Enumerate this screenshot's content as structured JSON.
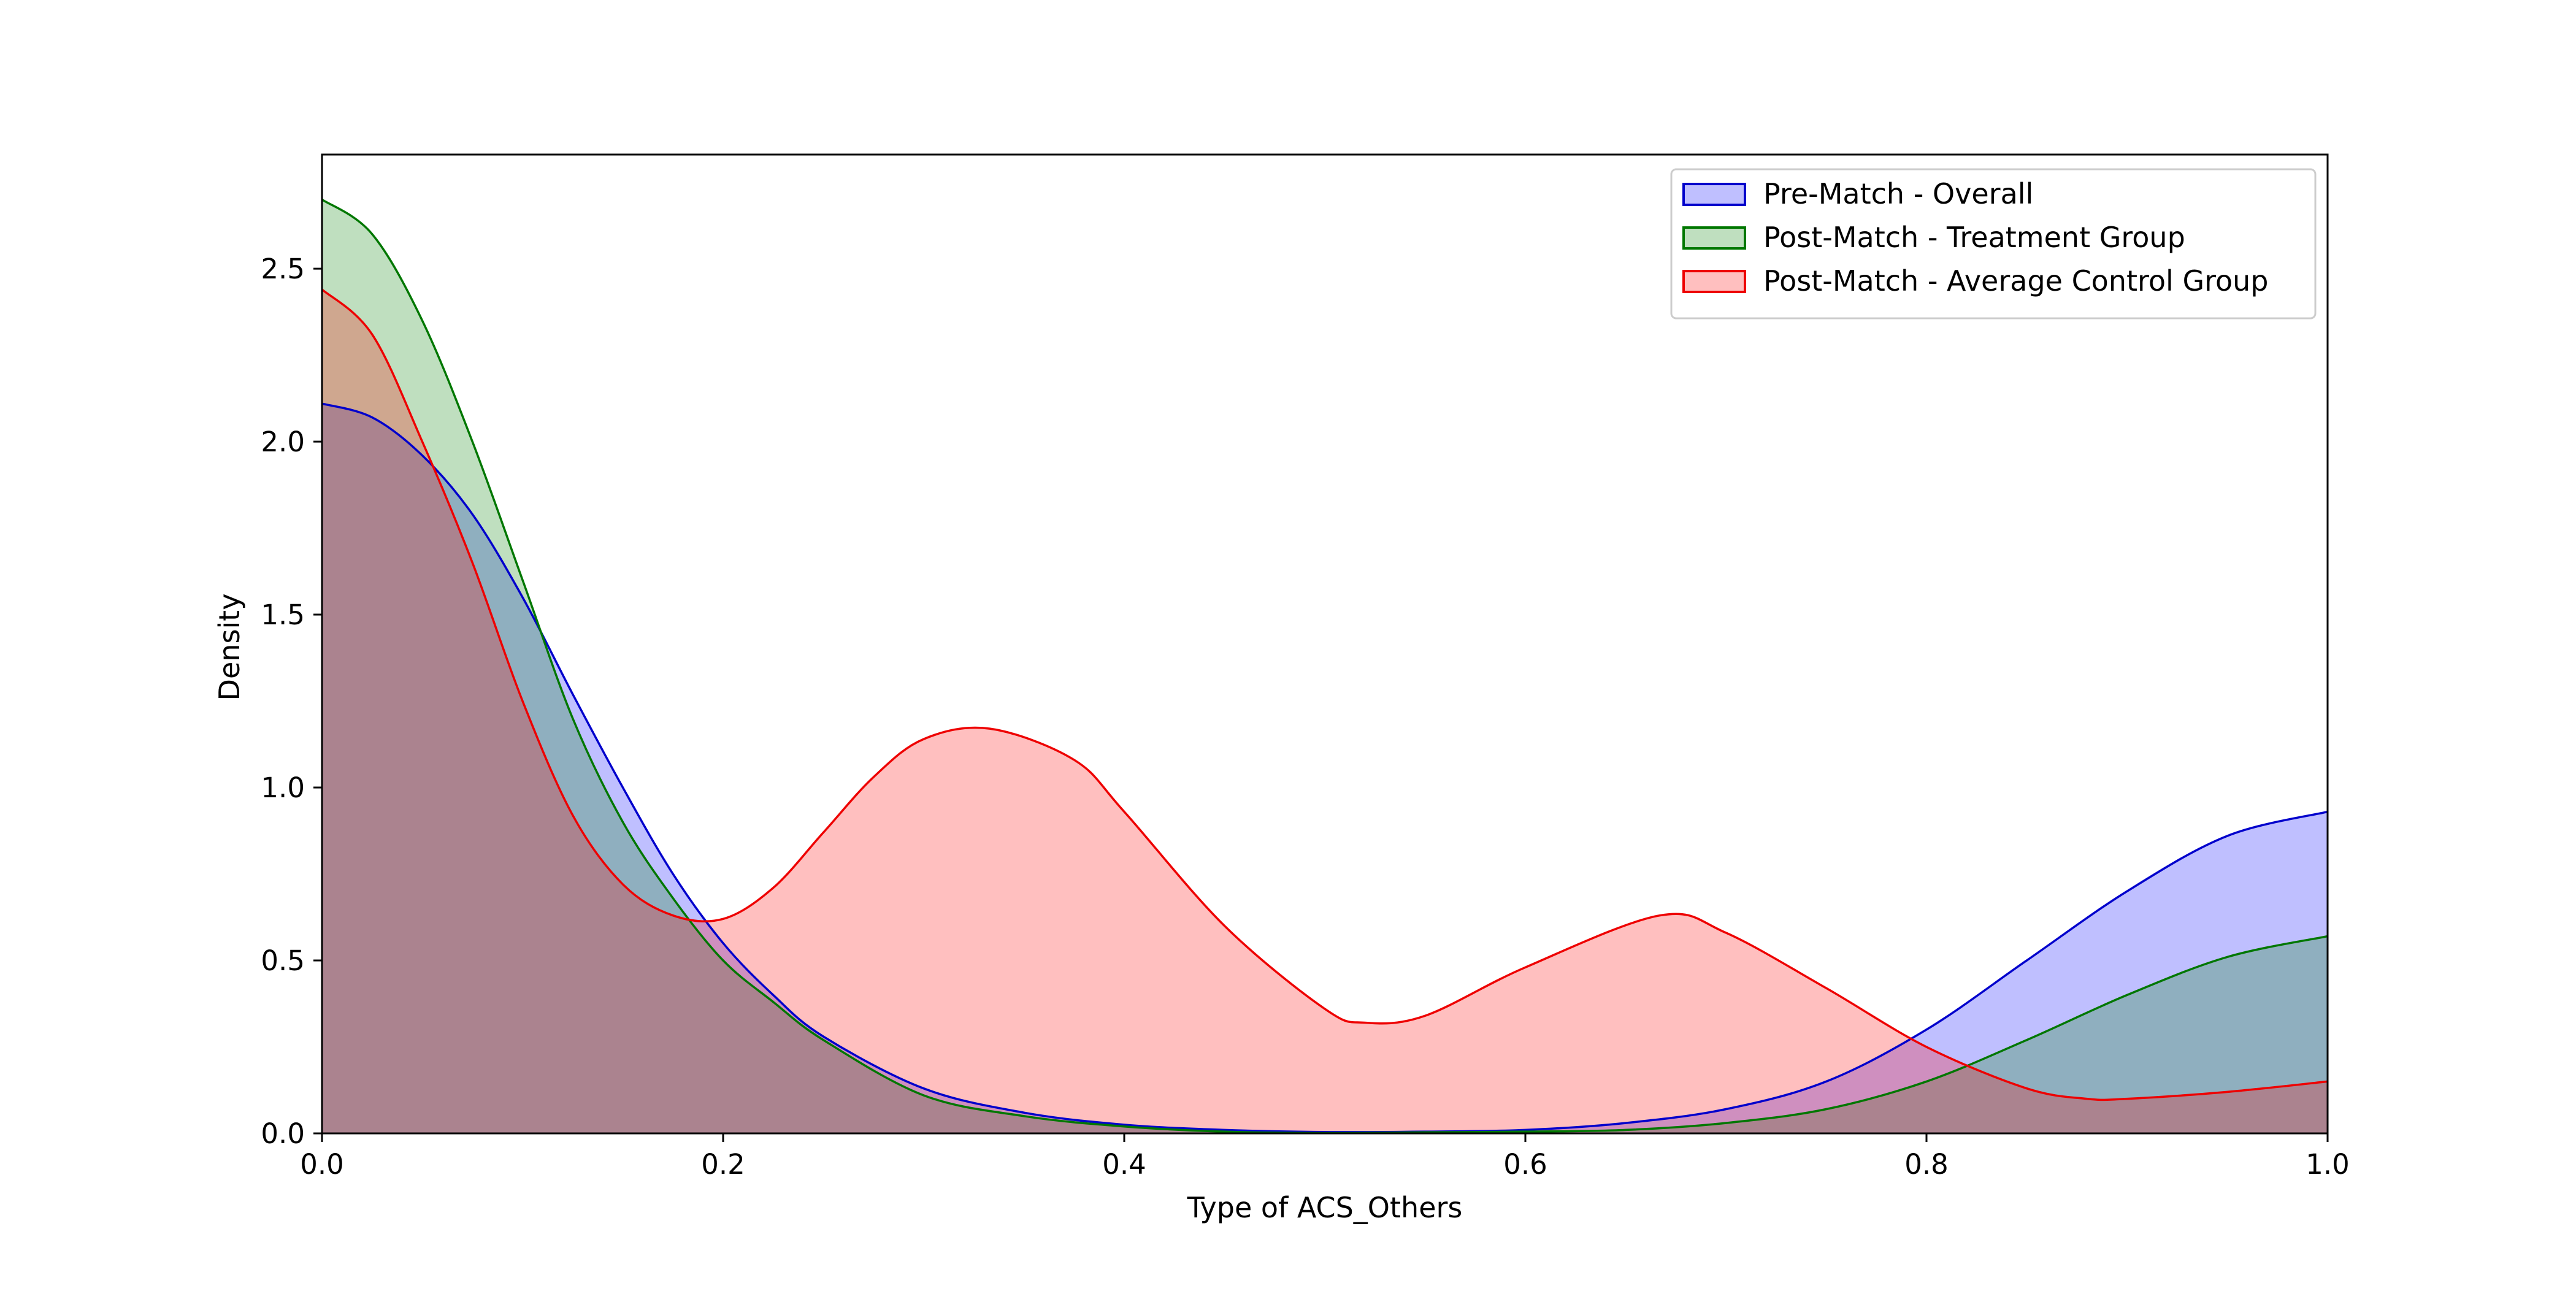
{
  "chart_data": {
    "type": "area",
    "title": "",
    "xlabel": "Type of ACS_Others",
    "ylabel": "Density",
    "xlim": [
      0.0,
      1.0
    ],
    "ylim": [
      0.0,
      2.83
    ],
    "x_ticks": [
      0.0,
      0.2,
      0.4,
      0.6,
      0.8,
      1.0
    ],
    "x_tick_labels": [
      "0.0",
      "0.2",
      "0.4",
      "0.6",
      "0.8",
      "1.0"
    ],
    "y_ticks": [
      0.0,
      0.5,
      1.0,
      1.5,
      2.0,
      2.5
    ],
    "y_tick_labels": [
      "0.0",
      "0.5",
      "1.0",
      "1.5",
      "2.0",
      "2.5"
    ],
    "grid": false,
    "legend_position": "top-right",
    "series": [
      {
        "name": "Pre-Match - Overall",
        "color": "#0000cc",
        "fill": "#0000ff",
        "fill_opacity": 0.25,
        "x": [
          0.0,
          0.025,
          0.05,
          0.075,
          0.1,
          0.125,
          0.15,
          0.175,
          0.2,
          0.225,
          0.25,
          0.3,
          0.35,
          0.4,
          0.45,
          0.5,
          0.55,
          0.6,
          0.65,
          0.7,
          0.75,
          0.8,
          0.85,
          0.9,
          0.95,
          1.0
        ],
        "y": [
          2.11,
          2.07,
          1.96,
          1.79,
          1.55,
          1.27,
          1.0,
          0.75,
          0.55,
          0.4,
          0.28,
          0.13,
          0.06,
          0.025,
          0.01,
          0.004,
          0.005,
          0.01,
          0.03,
          0.07,
          0.15,
          0.3,
          0.5,
          0.7,
          0.86,
          0.93
        ]
      },
      {
        "name": "Post-Match - Treatment Group",
        "color": "#007700",
        "fill": "#008000",
        "fill_opacity": 0.25,
        "x": [
          0.0,
          0.025,
          0.05,
          0.075,
          0.1,
          0.125,
          0.15,
          0.175,
          0.2,
          0.225,
          0.25,
          0.3,
          0.35,
          0.4,
          0.45,
          0.5,
          0.55,
          0.6,
          0.65,
          0.7,
          0.75,
          0.8,
          0.85,
          0.9,
          0.95,
          1.0
        ],
        "y": [
          2.7,
          2.6,
          2.35,
          2.0,
          1.6,
          1.2,
          0.9,
          0.68,
          0.5,
          0.38,
          0.27,
          0.11,
          0.05,
          0.02,
          0.005,
          0.001,
          0.003,
          0.005,
          0.01,
          0.03,
          0.07,
          0.15,
          0.27,
          0.4,
          0.51,
          0.57
        ]
      },
      {
        "name": "Post-Match - Average Control Group",
        "color": "#ee0000",
        "fill": "#ff0000",
        "fill_opacity": 0.25,
        "x": [
          0.0,
          0.025,
          0.05,
          0.075,
          0.1,
          0.125,
          0.15,
          0.175,
          0.2,
          0.225,
          0.25,
          0.275,
          0.3,
          0.333,
          0.375,
          0.4,
          0.45,
          0.5,
          0.52,
          0.55,
          0.6,
          0.667,
          0.7,
          0.75,
          0.8,
          0.85,
          0.88,
          0.9,
          0.95,
          1.0
        ],
        "y": [
          2.44,
          2.31,
          2.0,
          1.65,
          1.25,
          0.92,
          0.72,
          0.63,
          0.62,
          0.71,
          0.87,
          1.03,
          1.14,
          1.17,
          1.08,
          0.93,
          0.6,
          0.36,
          0.32,
          0.34,
          0.48,
          0.63,
          0.58,
          0.42,
          0.25,
          0.13,
          0.1,
          0.1,
          0.12,
          0.15
        ]
      }
    ]
  }
}
